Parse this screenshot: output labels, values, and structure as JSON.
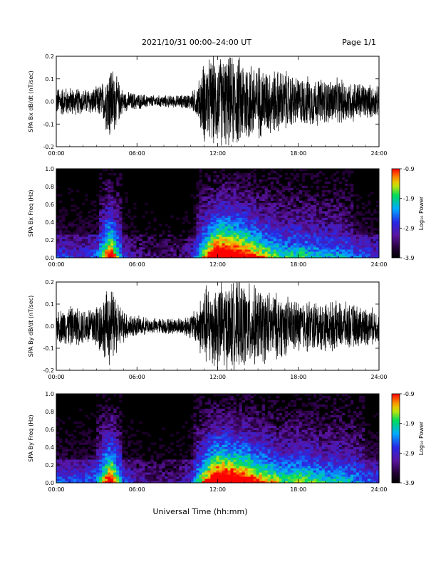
{
  "header": {
    "title": "2021/10/31   00:00–24:00 UT",
    "page": "Page 1/1"
  },
  "footer": {
    "xlabel": "Universal Time (hh:mm)"
  },
  "colors": {
    "trace": "#000000",
    "spectrogram_background": "#000000"
  },
  "chart_data": [
    {
      "type": "line",
      "panel_id": "bx-timeseries",
      "ylabel": "SPA Bx dB/dt (nT/sec)",
      "xlim": [
        0,
        24
      ],
      "ylim": [
        -0.2,
        0.2
      ],
      "xticks": [
        "00:00",
        "06:00",
        "12:00",
        "18:00",
        "24:00"
      ],
      "yticks": [
        "0.2",
        "0.1",
        "0.0",
        "-0.1",
        "-0.2"
      ],
      "yticks_values": [
        0.2,
        0.1,
        0.0,
        -0.1,
        -0.2
      ],
      "envelope_hours": [
        0,
        1,
        2,
        3,
        3.5,
        4,
        4.5,
        5,
        6,
        7,
        8,
        9,
        10,
        10.5,
        11,
        12,
        13,
        14,
        15,
        16,
        17,
        18,
        19,
        20,
        21,
        22,
        23,
        24
      ],
      "envelope_amplitude": [
        0.07,
        0.07,
        0.06,
        0.07,
        0.1,
        0.2,
        0.12,
        0.05,
        0.04,
        0.03,
        0.03,
        0.03,
        0.04,
        0.08,
        0.2,
        0.22,
        0.22,
        0.22,
        0.18,
        0.16,
        0.15,
        0.12,
        0.12,
        0.11,
        0.11,
        0.1,
        0.09,
        0.07
      ]
    },
    {
      "type": "heatmap",
      "panel_id": "bx-spectrogram",
      "ylabel": "SPA Bx Freq (Hz)",
      "xlim": [
        0,
        24
      ],
      "ylim": [
        0,
        1.0
      ],
      "xticks": [
        "00:00",
        "06:00",
        "12:00",
        "18:00",
        "24:00"
      ],
      "yticks": [
        "1.0",
        "0.8",
        "0.6",
        "0.4",
        "0.2",
        "0.0"
      ],
      "yticks_values": [
        1.0,
        0.8,
        0.6,
        0.4,
        0.2,
        0.0
      ],
      "colorbar": {
        "label": "Log₁₀ Power",
        "ticks": [
          "-0.9",
          "-1.9",
          "-2.9",
          "-3.9"
        ],
        "range": [
          -3.9,
          -0.9
        ]
      },
      "activity_hours": [
        0,
        1,
        2,
        3,
        4,
        5,
        6,
        7,
        8,
        9,
        10,
        11,
        12,
        13,
        14,
        15,
        16,
        17,
        18,
        19,
        20,
        21,
        22,
        23,
        24
      ],
      "activity_level": [
        0.3,
        0.25,
        0.25,
        0.3,
        0.85,
        0.25,
        0.15,
        0.12,
        0.12,
        0.12,
        0.2,
        0.6,
        0.95,
        0.9,
        0.8,
        0.65,
        0.55,
        0.45,
        0.5,
        0.45,
        0.4,
        0.4,
        0.35,
        0.3,
        0.25
      ]
    },
    {
      "type": "line",
      "panel_id": "by-timeseries",
      "ylabel": "SPA By dB/dt (nT/sec)",
      "xlim": [
        0,
        24
      ],
      "ylim": [
        -0.2,
        0.2
      ],
      "xticks": [
        "00:00",
        "06:00",
        "12:00",
        "18:00",
        "24:00"
      ],
      "yticks": [
        "0.2",
        "0.1",
        "0.0",
        "-0.1",
        "-0.2"
      ],
      "yticks_values": [
        0.2,
        0.1,
        0.0,
        -0.1,
        -0.2
      ],
      "envelope_hours": [
        0,
        1,
        2,
        3,
        3.5,
        4,
        4.5,
        5,
        6,
        7,
        8,
        9,
        10,
        10.5,
        11,
        12,
        13,
        14,
        15,
        16,
        17,
        18,
        19,
        20,
        21,
        22,
        23,
        24
      ],
      "envelope_amplitude": [
        0.08,
        0.1,
        0.09,
        0.12,
        0.15,
        0.2,
        0.14,
        0.08,
        0.05,
        0.04,
        0.04,
        0.04,
        0.06,
        0.1,
        0.2,
        0.22,
        0.22,
        0.22,
        0.19,
        0.17,
        0.15,
        0.13,
        0.13,
        0.12,
        0.12,
        0.11,
        0.1,
        0.08
      ]
    },
    {
      "type": "heatmap",
      "panel_id": "by-spectrogram",
      "ylabel": "SPA By Freq (Hz)",
      "xlim": [
        0,
        24
      ],
      "ylim": [
        0,
        1.0
      ],
      "xticks": [
        "00:00",
        "06:00",
        "12:00",
        "18:00",
        "24:00"
      ],
      "yticks": [
        "1.0",
        "0.8",
        "0.6",
        "0.4",
        "0.2",
        "0.0"
      ],
      "yticks_values": [
        1.0,
        0.8,
        0.6,
        0.4,
        0.2,
        0.0
      ],
      "colorbar": {
        "label": "Log₁₀ Power",
        "ticks": [
          "-0.9",
          "-1.9",
          "-2.9",
          "-3.9"
        ],
        "range": [
          -3.9,
          -0.9
        ]
      },
      "activity_hours": [
        0,
        1,
        2,
        3,
        4,
        5,
        6,
        7,
        8,
        9,
        10,
        11,
        12,
        13,
        14,
        15,
        16,
        17,
        18,
        19,
        20,
        21,
        22,
        23,
        24
      ],
      "activity_level": [
        0.3,
        0.3,
        0.3,
        0.35,
        0.85,
        0.3,
        0.2,
        0.15,
        0.15,
        0.15,
        0.25,
        0.65,
        0.95,
        0.9,
        0.85,
        0.7,
        0.6,
        0.5,
        0.55,
        0.5,
        0.45,
        0.45,
        0.4,
        0.35,
        0.3
      ]
    }
  ]
}
